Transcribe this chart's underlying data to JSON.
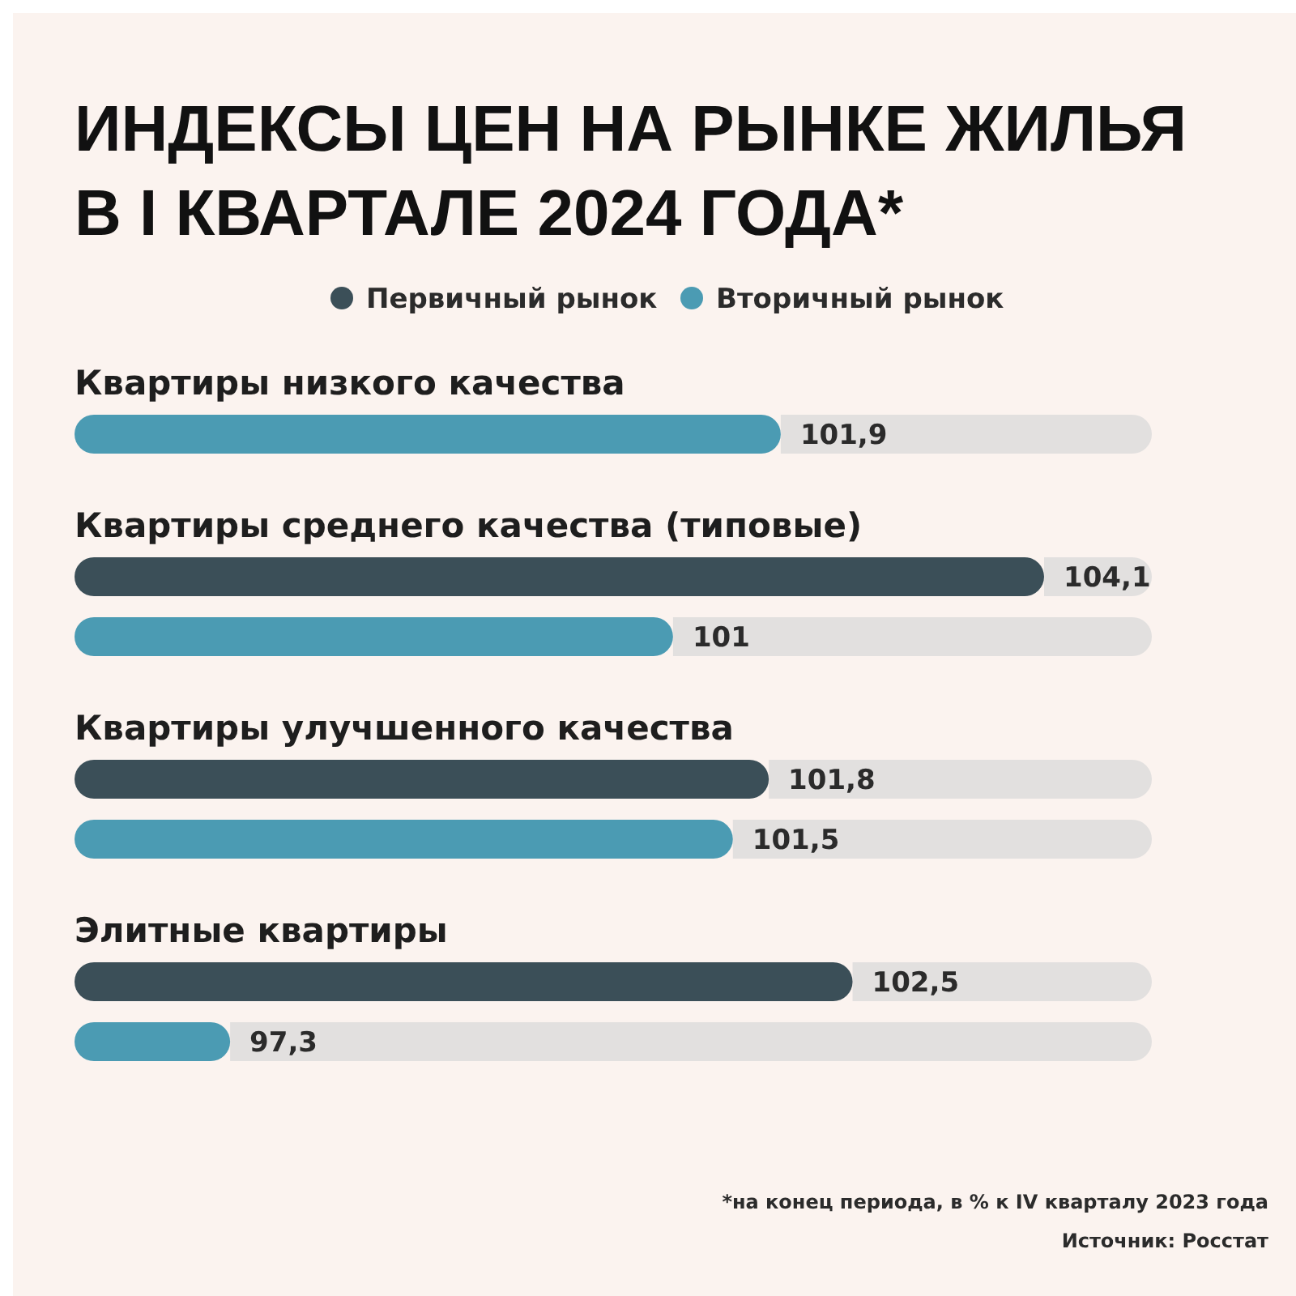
{
  "chart_data": {
    "type": "bar",
    "orientation": "horizontal",
    "title": "ИНДЕКСЫ ЦЕН НА РЫНКЕ ЖИЛЬЯ\nВ I КВАРТАЛЕ 2024 ГОДА*",
    "categories": [
      "Квартиры низкого качества",
      "Квартиры среднего качества (типовые)",
      "Квартиры улучшенного качества",
      "Элитные квартиры"
    ],
    "series": [
      {
        "name": "Первичный рынок",
        "color": "#3b4f58",
        "values": [
          null,
          104.1,
          101.8,
          102.5
        ],
        "value_labels": [
          null,
          "104,1",
          "101,8",
          "102,5"
        ]
      },
      {
        "name": "Вторичный рынок",
        "color": "#4b9bb3",
        "values": [
          101.9,
          101,
          101.5,
          97.3
        ],
        "value_labels": [
          "101,9",
          "101",
          "101,5",
          "97,3"
        ]
      }
    ],
    "xlim": [
      96,
      105
    ],
    "legend": "top",
    "annotations": [
      "*на конец периода, в % к IV кварталу 2023 года",
      "Источник: Росстат"
    ]
  }
}
